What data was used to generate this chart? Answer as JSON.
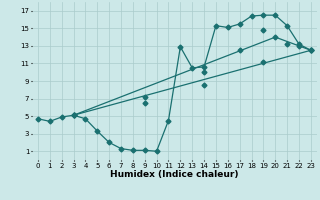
{
  "xlabel": "Humidex (Indice chaleur)",
  "bg_color": "#cce8e8",
  "grid_color": "#aacccc",
  "line_color": "#1a7070",
  "xlim": [
    -0.5,
    23.5
  ],
  "ylim": [
    0,
    18
  ],
  "xticks": [
    0,
    1,
    2,
    3,
    4,
    5,
    6,
    7,
    8,
    9,
    10,
    11,
    12,
    13,
    14,
    15,
    16,
    17,
    18,
    19,
    20,
    21,
    22,
    23
  ],
  "yticks": [
    1,
    3,
    5,
    7,
    9,
    11,
    13,
    15,
    17
  ],
  "line1_x": [
    0,
    1,
    2,
    3,
    4,
    5,
    6,
    7,
    8,
    9,
    10,
    11,
    12,
    13,
    14,
    15,
    16,
    17,
    18,
    19,
    20,
    21,
    22,
    23
  ],
  "line1_y": [
    4.7,
    4.4,
    4.9,
    5.1,
    4.7,
    3.3,
    2.0,
    1.3,
    1.1,
    1.1,
    1.0,
    4.5,
    12.9,
    10.5,
    10.6,
    15.3,
    15.1,
    15.5,
    16.4,
    16.5,
    16.5,
    15.3,
    13.2,
    12.5
  ],
  "line1_markers_x": [
    0,
    1,
    2,
    3,
    4,
    5,
    6,
    7,
    8,
    9,
    10,
    11,
    12,
    13,
    14,
    15,
    16,
    17,
    18,
    19,
    20,
    21,
    22,
    23
  ],
  "line1_markers_y": [
    4.7,
    4.4,
    4.9,
    5.1,
    4.7,
    3.3,
    2.0,
    1.3,
    1.1,
    1.1,
    1.0,
    4.5,
    12.9,
    10.5,
    10.6,
    15.3,
    15.1,
    15.5,
    16.4,
    16.5,
    16.5,
    15.3,
    13.2,
    12.5
  ],
  "line2_x": [
    3,
    23
  ],
  "line2_y": [
    5.1,
    12.5
  ],
  "line2_markers_x": [
    3,
    9,
    14,
    19,
    23
  ],
  "line2_markers_y": [
    5.1,
    6.5,
    8.5,
    11.2,
    12.5
  ],
  "line3_x": [
    3,
    20,
    23
  ],
  "line3_y": [
    5.1,
    14.0,
    12.5
  ],
  "line3_markers_x": [
    3,
    9,
    14,
    17,
    19,
    20,
    21,
    22,
    23
  ],
  "line3_markers_y": [
    5.1,
    7.2,
    10.0,
    12.5,
    14.8,
    14.0,
    13.2,
    13.0,
    12.5
  ],
  "markersize": 2.5,
  "linewidth": 0.9
}
